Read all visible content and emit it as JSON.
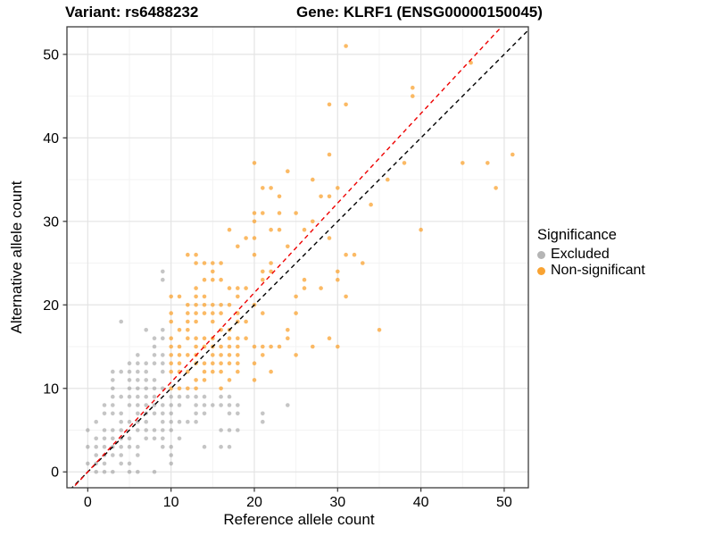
{
  "titles": {
    "variant": "Variant: rs6488232",
    "gene": "Gene: KLRF1 (ENSG00000150045)"
  },
  "axes": {
    "x_label": "Reference allele count",
    "y_label": "Alternative allele count"
  },
  "legend": {
    "title": "Significance",
    "items": [
      {
        "label": "Excluded",
        "color": "#b5b5b5"
      },
      {
        "label": "Non-significant",
        "color": "#f9a332"
      }
    ]
  },
  "colors": {
    "excluded_point": "#8c8c8c",
    "non_significant_point": "#f9a332",
    "identity_line": "#000000",
    "fit_line": "#ee0000",
    "grid_major": "#e4e4e4",
    "grid_minor": "#f3f3f3",
    "panel_border": "#3c3c3c"
  },
  "chart_data": {
    "type": "scatter",
    "title": "Variant: rs6488232 | Gene: KLRF1 (ENSG00000150045)",
    "xlabel": "Reference allele count",
    "ylabel": "Alternative allele count",
    "xlim": [
      -2.5,
      52.9
    ],
    "ylim": [
      -1.9,
      53.3
    ],
    "x_ticks": [
      0,
      10,
      20,
      30,
      40,
      50
    ],
    "y_ticks": [
      0,
      10,
      20,
      30,
      40,
      50
    ],
    "x_minor": [
      5,
      15,
      25,
      35,
      45
    ],
    "y_minor": [
      5,
      15,
      25,
      35,
      45
    ],
    "grid": true,
    "legend_position": "right",
    "lines": [
      {
        "name": "identity",
        "slope": 1.0,
        "intercept": 0,
        "style": "dashed",
        "color": "#000000"
      },
      {
        "name": "fit",
        "slope": 1.073,
        "intercept": 0,
        "style": "dashed",
        "color": "#ee0000"
      }
    ],
    "series": [
      {
        "name": "Excluded",
        "color": "#8c8c8c",
        "opacity": 0.5,
        "points": [
          [
            1,
            0
          ],
          [
            2,
            0
          ],
          [
            3,
            0
          ],
          [
            5,
            0
          ],
          [
            6,
            0
          ],
          [
            8,
            0
          ],
          [
            0,
            1
          ],
          [
            1,
            1
          ],
          [
            2,
            1
          ],
          [
            4,
            1
          ],
          [
            5,
            1
          ],
          [
            10,
            1
          ],
          [
            1,
            2
          ],
          [
            2,
            2
          ],
          [
            3,
            2
          ],
          [
            4,
            2
          ],
          [
            6,
            2
          ],
          [
            10,
            2
          ],
          [
            0,
            3
          ],
          [
            1,
            3
          ],
          [
            2,
            3
          ],
          [
            3,
            3
          ],
          [
            4,
            3
          ],
          [
            5,
            3
          ],
          [
            6,
            3
          ],
          [
            9,
            3
          ],
          [
            10,
            3
          ],
          [
            14,
            3
          ],
          [
            16,
            3
          ],
          [
            17,
            3
          ],
          [
            1,
            4
          ],
          [
            2,
            4
          ],
          [
            3,
            4
          ],
          [
            4,
            4
          ],
          [
            5,
            4
          ],
          [
            7,
            4
          ],
          [
            8,
            4
          ],
          [
            9,
            4
          ],
          [
            11,
            4
          ],
          [
            0,
            5
          ],
          [
            2,
            5
          ],
          [
            3,
            5
          ],
          [
            4,
            5
          ],
          [
            6,
            5
          ],
          [
            7,
            5
          ],
          [
            8,
            5
          ],
          [
            9,
            5
          ],
          [
            10,
            5
          ],
          [
            16,
            5
          ],
          [
            17,
            5
          ],
          [
            18,
            5
          ],
          [
            1,
            6
          ],
          [
            4,
            6
          ],
          [
            5,
            6
          ],
          [
            6,
            6
          ],
          [
            7,
            6
          ],
          [
            9,
            6
          ],
          [
            10,
            6
          ],
          [
            11,
            6
          ],
          [
            12,
            6
          ],
          [
            13,
            6
          ],
          [
            21,
            6
          ],
          [
            2,
            7
          ],
          [
            3,
            7
          ],
          [
            4,
            7
          ],
          [
            6,
            7
          ],
          [
            7,
            7
          ],
          [
            8,
            7
          ],
          [
            9,
            7
          ],
          [
            10,
            7
          ],
          [
            13,
            7
          ],
          [
            14,
            7
          ],
          [
            17,
            7
          ],
          [
            18,
            7
          ],
          [
            21,
            7
          ],
          [
            2,
            8
          ],
          [
            3,
            8
          ],
          [
            5,
            8
          ],
          [
            6,
            8
          ],
          [
            7,
            8
          ],
          [
            8,
            8
          ],
          [
            9,
            8
          ],
          [
            10,
            8
          ],
          [
            11,
            8
          ],
          [
            13,
            8
          ],
          [
            14,
            8
          ],
          [
            15,
            8
          ],
          [
            16,
            8
          ],
          [
            17,
            8
          ],
          [
            18,
            8
          ],
          [
            24,
            8
          ],
          [
            3,
            9
          ],
          [
            4,
            9
          ],
          [
            5,
            9
          ],
          [
            6,
            9
          ],
          [
            7,
            9
          ],
          [
            8,
            9
          ],
          [
            10,
            9
          ],
          [
            11,
            9
          ],
          [
            12,
            9
          ],
          [
            13,
            9
          ],
          [
            14,
            9
          ],
          [
            16,
            9
          ],
          [
            17,
            9
          ],
          [
            3,
            10
          ],
          [
            5,
            10
          ],
          [
            6,
            10
          ],
          [
            7,
            10
          ],
          [
            8,
            10
          ],
          [
            9,
            10
          ],
          [
            3,
            11
          ],
          [
            5,
            11
          ],
          [
            6,
            11
          ],
          [
            7,
            11
          ],
          [
            8,
            11
          ],
          [
            3,
            12
          ],
          [
            4,
            12
          ],
          [
            5,
            12
          ],
          [
            6,
            12
          ],
          [
            7,
            12
          ],
          [
            9,
            12
          ],
          [
            5,
            13
          ],
          [
            6,
            13
          ],
          [
            7,
            13
          ],
          [
            8,
            13
          ],
          [
            9,
            13
          ],
          [
            6,
            14
          ],
          [
            8,
            14
          ],
          [
            9,
            14
          ],
          [
            8,
            15
          ],
          [
            8,
            16
          ],
          [
            9,
            16
          ],
          [
            7,
            17
          ],
          [
            9,
            17
          ],
          [
            4,
            18
          ],
          [
            9,
            23
          ],
          [
            9,
            24
          ]
        ]
      },
      {
        "name": "Non-significant",
        "color": "#f9a332",
        "opacity": 0.75,
        "points": [
          [
            10,
            10
          ],
          [
            11,
            10
          ],
          [
            12,
            10
          ],
          [
            13,
            10
          ],
          [
            16,
            10
          ],
          [
            13,
            11
          ],
          [
            14,
            11
          ],
          [
            17,
            11
          ],
          [
            20,
            11
          ],
          [
            10,
            12
          ],
          [
            11,
            12
          ],
          [
            12,
            12
          ],
          [
            14,
            12
          ],
          [
            15,
            12
          ],
          [
            16,
            12
          ],
          [
            18,
            12
          ],
          [
            22,
            12
          ],
          [
            10,
            13
          ],
          [
            11,
            13
          ],
          [
            13,
            13
          ],
          [
            14,
            13
          ],
          [
            15,
            13
          ],
          [
            16,
            13
          ],
          [
            17,
            13
          ],
          [
            18,
            13
          ],
          [
            20,
            13
          ],
          [
            10,
            14
          ],
          [
            11,
            14
          ],
          [
            12,
            14
          ],
          [
            13,
            14
          ],
          [
            15,
            14
          ],
          [
            16,
            14
          ],
          [
            17,
            14
          ],
          [
            18,
            14
          ],
          [
            21,
            14
          ],
          [
            25,
            14
          ],
          [
            10,
            15
          ],
          [
            11,
            15
          ],
          [
            13,
            15
          ],
          [
            14,
            15
          ],
          [
            15,
            15
          ],
          [
            16,
            15
          ],
          [
            17,
            15
          ],
          [
            18,
            15
          ],
          [
            20,
            15
          ],
          [
            21,
            15
          ],
          [
            22,
            15
          ],
          [
            23,
            15
          ],
          [
            27,
            15
          ],
          [
            30,
            15
          ],
          [
            10,
            16
          ],
          [
            12,
            16
          ],
          [
            13,
            16
          ],
          [
            14,
            16
          ],
          [
            15,
            16
          ],
          [
            17,
            16
          ],
          [
            18,
            16
          ],
          [
            19,
            16
          ],
          [
            24,
            16
          ],
          [
            29,
            16
          ],
          [
            11,
            17
          ],
          [
            12,
            17
          ],
          [
            16,
            17
          ],
          [
            17,
            17
          ],
          [
            24,
            17
          ],
          [
            35,
            17
          ],
          [
            10,
            18
          ],
          [
            12,
            18
          ],
          [
            13,
            18
          ],
          [
            15,
            18
          ],
          [
            18,
            18
          ],
          [
            19,
            18
          ],
          [
            10,
            19
          ],
          [
            12,
            19
          ],
          [
            13,
            19
          ],
          [
            14,
            19
          ],
          [
            15,
            19
          ],
          [
            16,
            19
          ],
          [
            18,
            19
          ],
          [
            21,
            19
          ],
          [
            25,
            19
          ],
          [
            12,
            20
          ],
          [
            13,
            20
          ],
          [
            14,
            20
          ],
          [
            15,
            20
          ],
          [
            16,
            20
          ],
          [
            17,
            20
          ],
          [
            20,
            20
          ],
          [
            10,
            21
          ],
          [
            11,
            21
          ],
          [
            13,
            21
          ],
          [
            14,
            21
          ],
          [
            18,
            21
          ],
          [
            25,
            21
          ],
          [
            31,
            21
          ],
          [
            13,
            22
          ],
          [
            17,
            22
          ],
          [
            18,
            22
          ],
          [
            19,
            22
          ],
          [
            26,
            22
          ],
          [
            28,
            22
          ],
          [
            14,
            23
          ],
          [
            15,
            23
          ],
          [
            16,
            23
          ],
          [
            21,
            23
          ],
          [
            26,
            23
          ],
          [
            30,
            23
          ],
          [
            15,
            24
          ],
          [
            21,
            24
          ],
          [
            22,
            24
          ],
          [
            30,
            24
          ],
          [
            13,
            25
          ],
          [
            14,
            25
          ],
          [
            15,
            25
          ],
          [
            16,
            25
          ],
          [
            22,
            25
          ],
          [
            33,
            25
          ],
          [
            12,
            26
          ],
          [
            13,
            26
          ],
          [
            20,
            26
          ],
          [
            31,
            26
          ],
          [
            32,
            26
          ],
          [
            18,
            27
          ],
          [
            24,
            27
          ],
          [
            19,
            28
          ],
          [
            20,
            28
          ],
          [
            29,
            28
          ],
          [
            17,
            29
          ],
          [
            22,
            29
          ],
          [
            23,
            29
          ],
          [
            26,
            29
          ],
          [
            40,
            29
          ],
          [
            20,
            30
          ],
          [
            27,
            30
          ],
          [
            20,
            31
          ],
          [
            21,
            31
          ],
          [
            23,
            31
          ],
          [
            25,
            31
          ],
          [
            34,
            32
          ],
          [
            23,
            33
          ],
          [
            28,
            33
          ],
          [
            29,
            33
          ],
          [
            21,
            34
          ],
          [
            22,
            34
          ],
          [
            30,
            34
          ],
          [
            49,
            34
          ],
          [
            27,
            35
          ],
          [
            36,
            35
          ],
          [
            24,
            36
          ],
          [
            20,
            37
          ],
          [
            38,
            37
          ],
          [
            45,
            37
          ],
          [
            48,
            37
          ],
          [
            29,
            38
          ],
          [
            51,
            38
          ],
          [
            29,
            44
          ],
          [
            31,
            44
          ],
          [
            39,
            45
          ],
          [
            39,
            46
          ],
          [
            46,
            49
          ],
          [
            31,
            51
          ]
        ]
      }
    ]
  }
}
